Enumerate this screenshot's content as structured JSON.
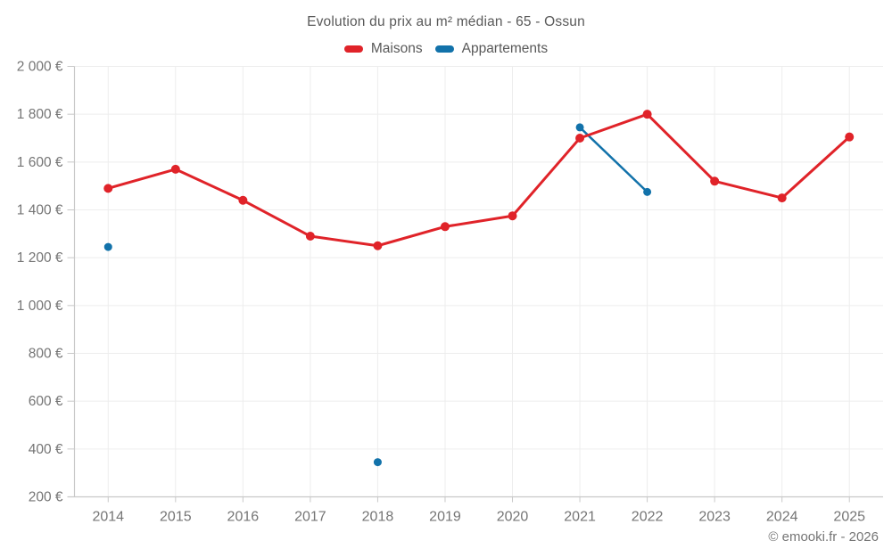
{
  "footer": {
    "copyright": "© emooki.fr - 2026"
  },
  "chart_data": {
    "type": "line",
    "title": "Evolution du prix au m² médian - 65 - Ossun",
    "x": [
      "2014",
      "2015",
      "2016",
      "2017",
      "2018",
      "2019",
      "2020",
      "2021",
      "2022",
      "2023",
      "2024",
      "2025"
    ],
    "series": [
      {
        "name": "Maisons",
        "color": "#e02329",
        "point_radius": 5,
        "line_width": 3,
        "values": [
          1490,
          1570,
          1440,
          1290,
          1250,
          1330,
          1375,
          1700,
          1800,
          1520,
          1450,
          1705
        ]
      },
      {
        "name": "Appartements",
        "color": "#1272aa",
        "point_radius": 4.5,
        "line_width": 2.5,
        "values": [
          1245,
          null,
          null,
          null,
          345,
          null,
          null,
          1745,
          1475,
          null,
          null,
          null
        ]
      }
    ],
    "ylim": [
      200,
      2000
    ],
    "ytick_step": 200,
    "y_ticks": [
      200,
      400,
      600,
      800,
      1000,
      1200,
      1400,
      1600,
      1800,
      2000
    ],
    "y_tick_labels": [
      "200 €",
      "400 €",
      "600 €",
      "800 €",
      "1 000 €",
      "1 200 €",
      "1 400 €",
      "1 600 €",
      "1 800 €",
      "2 000 €"
    ],
    "grid": true,
    "legend_position": "top",
    "span_gaps": false,
    "colors": {
      "grid": "#ededed",
      "axis": "#c8c8c8",
      "tick_label": "#757575",
      "title_text": "#595959"
    }
  }
}
